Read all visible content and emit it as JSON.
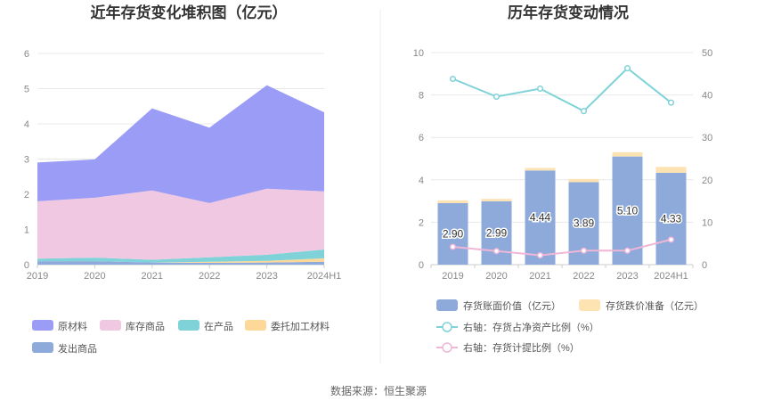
{
  "source": "数据来源：恒生聚源",
  "chart_data": [
    {
      "type": "area",
      "stacked": true,
      "title": "近年存货变化堆积图（亿元）",
      "categories": [
        "2019",
        "2020",
        "2021",
        "2022",
        "2023",
        "2024H1"
      ],
      "ylim": [
        0,
        6
      ],
      "yticks": [
        "0",
        "1",
        "2",
        "3",
        "4",
        "5",
        "6"
      ],
      "grid": true,
      "legend_position": "bottom",
      "series": [
        {
          "name": "发出商品",
          "color": "#8eaadb",
          "values": [
            0.1,
            0.1,
            0.06,
            0.05,
            0.06,
            0.08
          ]
        },
        {
          "name": "委托加工材料",
          "color": "#fdd899",
          "values": [
            0.0,
            0.0,
            0.0,
            0.03,
            0.05,
            0.1
          ]
        },
        {
          "name": "在产品",
          "color": "#7fd3d8",
          "values": [
            0.07,
            0.1,
            0.08,
            0.13,
            0.17,
            0.25
          ]
        },
        {
          "name": "库存商品",
          "color": "#f0c8e2",
          "values": [
            1.63,
            1.7,
            1.97,
            1.54,
            1.88,
            1.65
          ]
        },
        {
          "name": "原材料",
          "color": "#9a9cf6",
          "values": [
            1.1,
            1.09,
            2.33,
            2.14,
            2.94,
            2.25
          ]
        }
      ],
      "legend_order": [
        "原材料",
        "库存商品",
        "在产品",
        "委托加工材料",
        "发出商品"
      ]
    },
    {
      "type": "bar",
      "title": "历年存货变动情况",
      "categories": [
        "2019",
        "2020",
        "2021",
        "2022",
        "2023",
        "2024H1"
      ],
      "ylim_left": [
        0,
        10
      ],
      "yticks_left": [
        "0",
        "2",
        "4",
        "6",
        "8",
        "10"
      ],
      "ylim_right": [
        0,
        50
      ],
      "yticks_right": [
        "0",
        "10",
        "20",
        "30",
        "40",
        "50"
      ],
      "grid": true,
      "legend_position": "bottom",
      "series": [
        {
          "name": "存货账面价值（亿元）",
          "axis": "left",
          "kind": "bar",
          "color": "#8eaadb",
          "values": [
            2.9,
            2.99,
            4.44,
            3.89,
            5.1,
            4.33
          ],
          "labels": [
            "2.90",
            "2.99",
            "4.44",
            "3.89",
            "5.10",
            "4.33"
          ]
        },
        {
          "name": "存货跌价准备（亿元）",
          "axis": "left",
          "kind": "bar-stack",
          "color": "#fde2b2",
          "values": [
            0.13,
            0.11,
            0.12,
            0.15,
            0.2,
            0.28
          ]
        },
        {
          "name": "右轴：存货占净资产比例（%）",
          "axis": "right",
          "kind": "line",
          "color": "#7fd3d8",
          "values": [
            43.8,
            39.6,
            41.5,
            36.2,
            46.3,
            38.2
          ]
        },
        {
          "name": "右轴：存货计提比例（%）",
          "axis": "right",
          "kind": "line",
          "color": "#f0b6d6",
          "values": [
            4.2,
            3.2,
            2.2,
            3.3,
            3.3,
            5.9
          ]
        }
      ]
    }
  ]
}
